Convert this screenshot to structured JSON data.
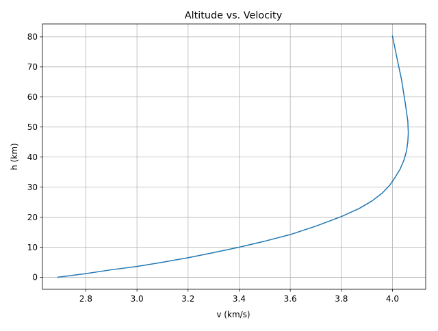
{
  "chart_data": {
    "type": "line",
    "title": "Altitude vs. Velocity",
    "xlabel": "v (km/s)",
    "ylabel": "h (km)",
    "xlim": [
      2.63,
      4.13
    ],
    "ylim": [
      -4,
      84.3
    ],
    "xticks": [
      2.8,
      3.0,
      3.2,
      3.4,
      3.6,
      3.8,
      4.0
    ],
    "xtick_labels": [
      "2.8",
      "3.0",
      "3.2",
      "3.4",
      "3.6",
      "3.8",
      "4.0"
    ],
    "yticks": [
      0,
      10,
      20,
      30,
      40,
      50,
      60,
      70,
      80
    ],
    "ytick_labels": [
      "0",
      "10",
      "20",
      "30",
      "40",
      "50",
      "60",
      "70",
      "80"
    ],
    "grid": true,
    "series": [
      {
        "color": "#1f77b4",
        "x": [
          2.69,
          2.8,
          2.9,
          3.0,
          3.1,
          3.2,
          3.3,
          3.4,
          3.5,
          3.6,
          3.7,
          3.8,
          3.87,
          3.92,
          3.96,
          3.99,
          4.01,
          4.03,
          4.045,
          4.055,
          4.06,
          4.062,
          4.06,
          4.05,
          4.035,
          4.015,
          4.0
        ],
        "y": [
          0,
          1.2,
          2.5,
          3.6,
          5.0,
          6.5,
          8.2,
          10.0,
          12.0,
          14.2,
          17.0,
          20.2,
          22.9,
          25.4,
          28.0,
          30.7,
          33.2,
          36.0,
          39.0,
          42.0,
          45.0,
          48.0,
          52.0,
          58.0,
          66.0,
          74.0,
          80.3
        ]
      }
    ]
  }
}
